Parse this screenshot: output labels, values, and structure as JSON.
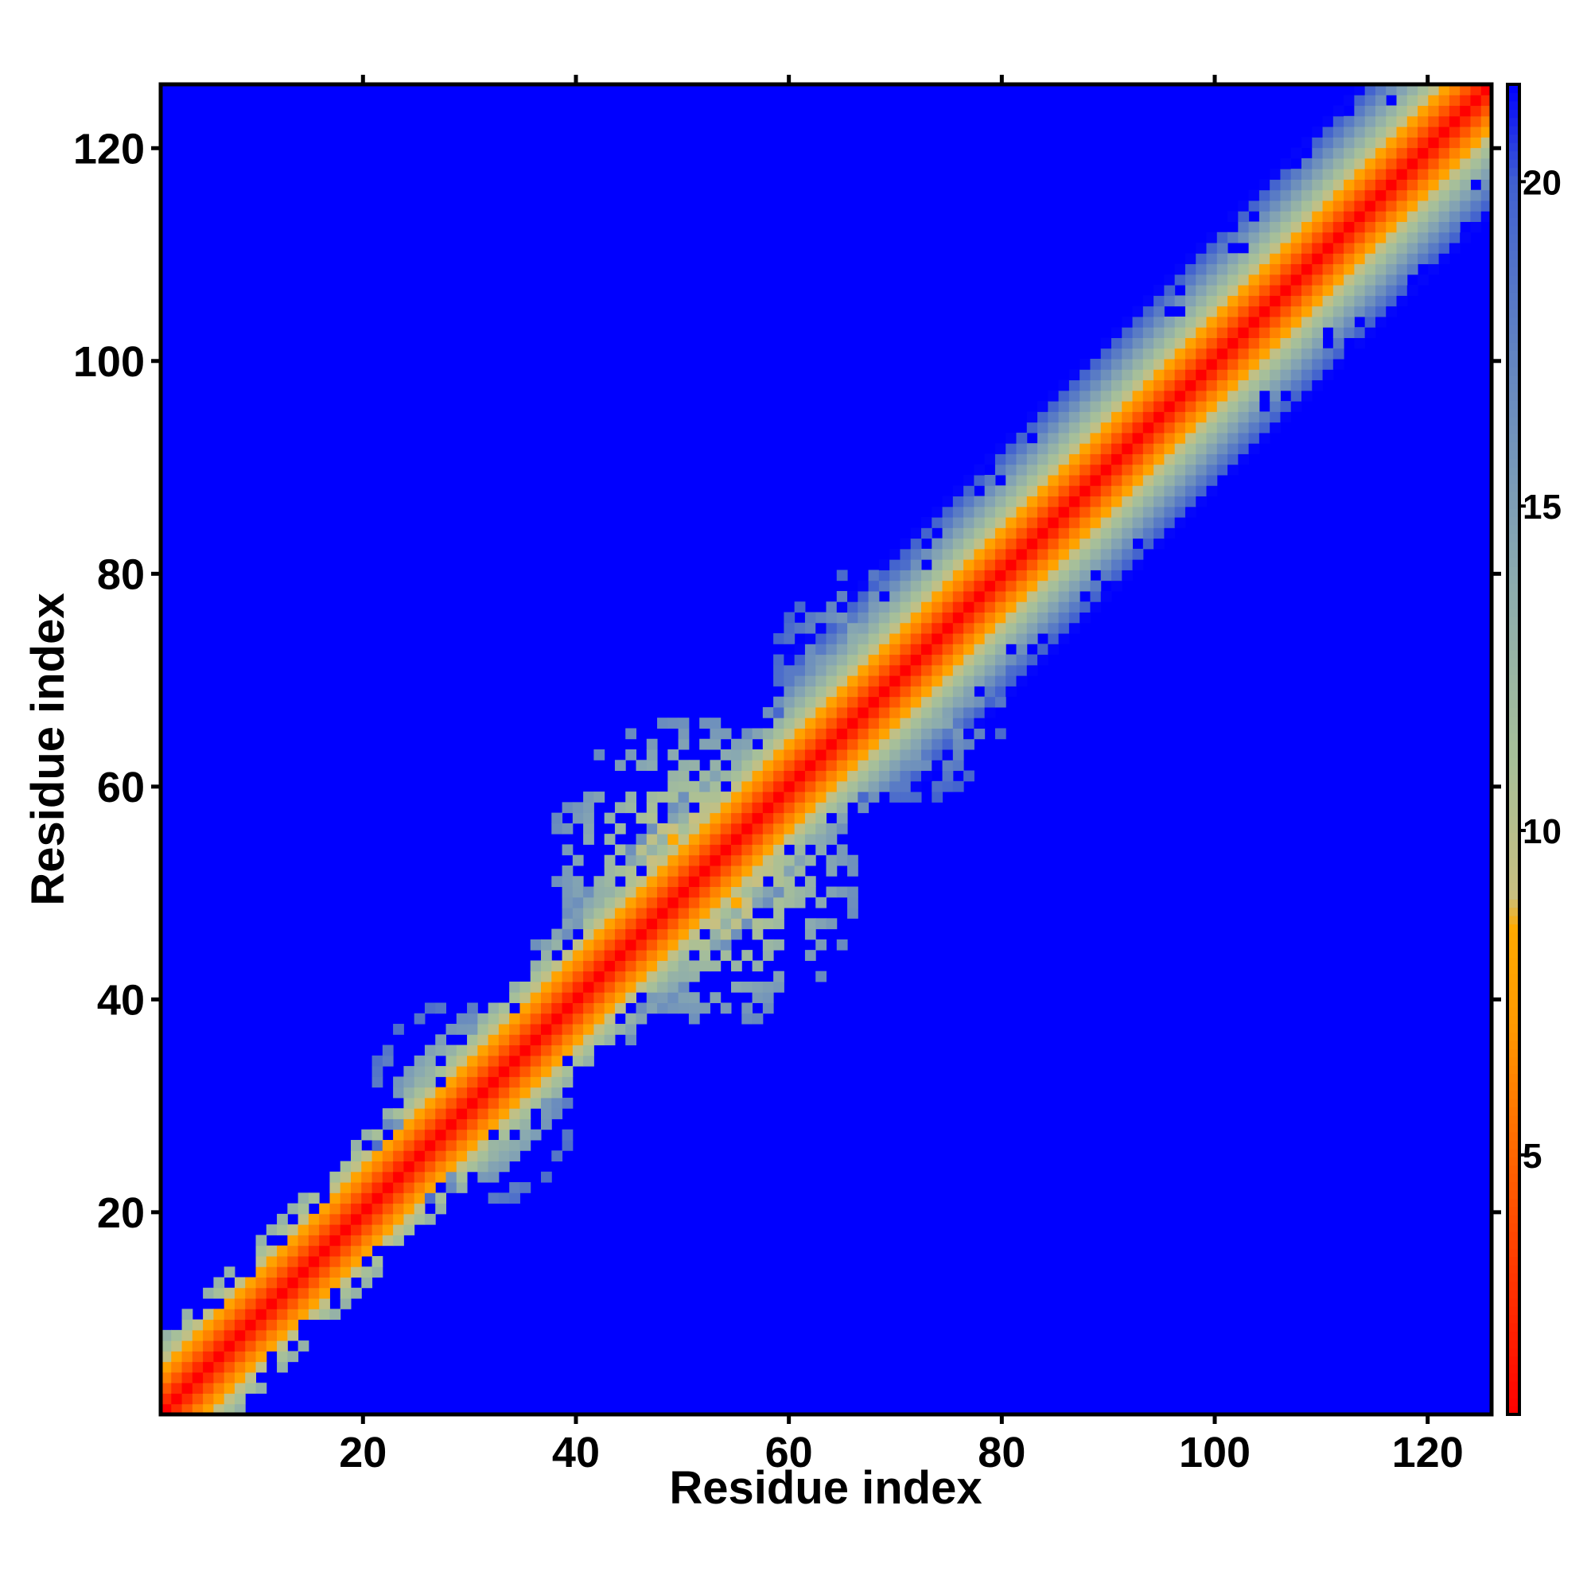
{
  "chart_data": {
    "type": "heatmap",
    "title": "",
    "xlabel": "Residue index",
    "ylabel": "Residue index",
    "xlim": [
      1,
      126
    ],
    "ylim": [
      1,
      126
    ],
    "x_ticks": [
      20,
      40,
      60,
      80,
      100,
      120
    ],
    "y_ticks": [
      20,
      40,
      60,
      80,
      100,
      120
    ],
    "grid": false,
    "colorbar": {
      "position": "right",
      "range": [
        1,
        21.5
      ],
      "ticks": [
        5,
        10,
        15,
        20
      ],
      "stops": [
        {
          "value": 1,
          "color": "#ff0000"
        },
        {
          "value": 3,
          "color": "#ff3300"
        },
        {
          "value": 5,
          "color": "#ff6600"
        },
        {
          "value": 7,
          "color": "#ff9900"
        },
        {
          "value": 8.5,
          "color": "#ffaa00"
        },
        {
          "value": 9,
          "color": "#c8c080"
        },
        {
          "value": 11,
          "color": "#a8c098"
        },
        {
          "value": 14,
          "color": "#8aaab0"
        },
        {
          "value": 17,
          "color": "#6688c0"
        },
        {
          "value": 20,
          "color": "#4060d0"
        },
        {
          "value": 21.5,
          "color": "#0000ff"
        }
      ]
    },
    "background_value_color": "#0000ff",
    "diagonal_band": [
      {
        "residue_range": [
          1,
          40
        ],
        "half_width_residues": 7
      },
      {
        "residue_range": [
          40,
          65
        ],
        "half_width_residues": 9
      },
      {
        "residue_range": [
          65,
          126
        ],
        "half_width_residues": 12
      }
    ],
    "contact_clusters": [
      {
        "center": [
          52,
          52
        ],
        "radius": 15,
        "min_value": 5
      },
      {
        "center": [
          30,
          30
        ],
        "radius": 10,
        "min_value": 7
      },
      {
        "center": [
          70,
          70
        ],
        "radius": 12,
        "min_value": 8
      }
    ],
    "notes": "Symmetric residue distance map; values near diagonal approach 1 (red), background is the colorbar maximum (blue)."
  }
}
